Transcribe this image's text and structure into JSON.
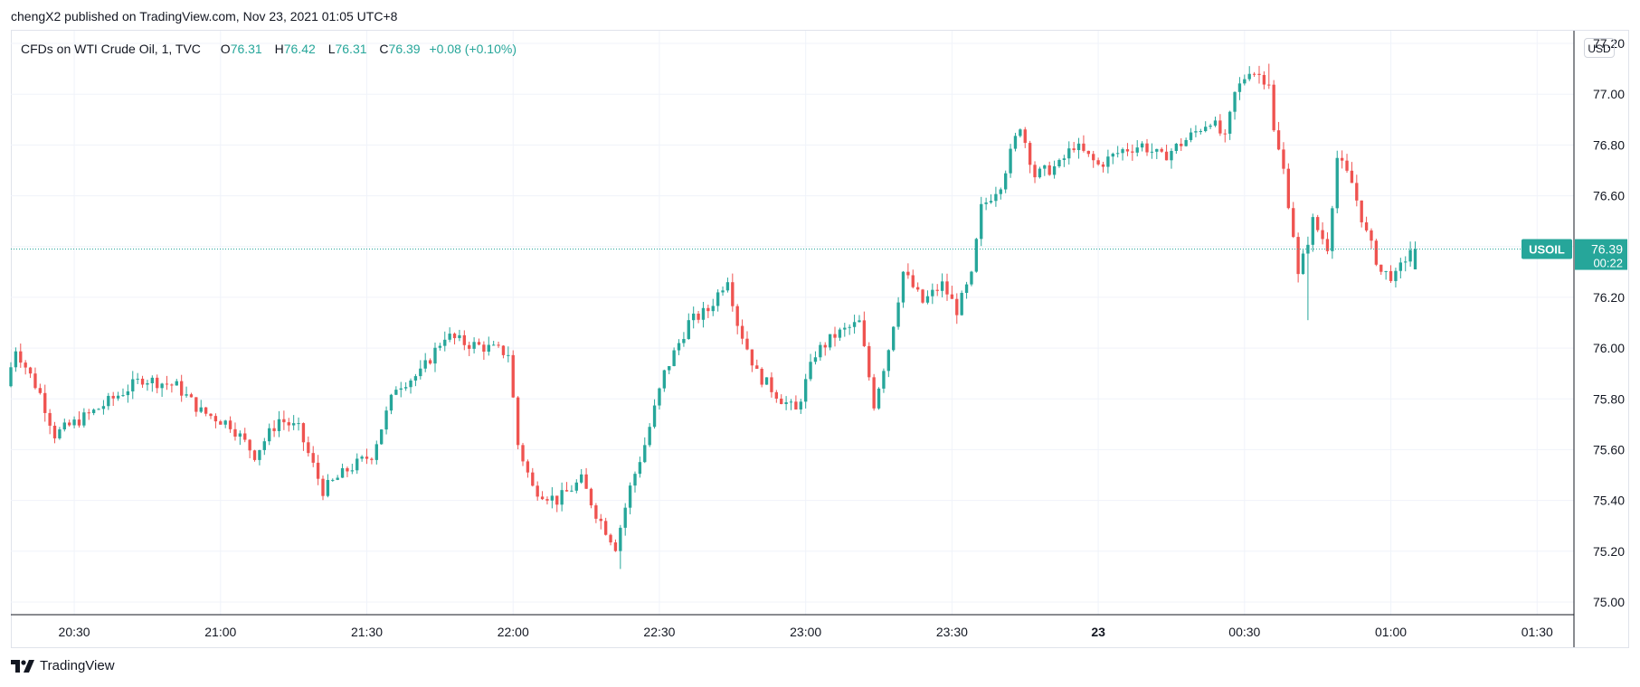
{
  "header": {
    "publisher_line": "chengX2 published on TradingView.com, Nov 23, 2021 01:05 UTC+8"
  },
  "legend": {
    "symbol": "CFDs on WTI Crude Oil, 1, TVC",
    "open_label": "O",
    "open": "76.31",
    "high_label": "H",
    "high": "76.42",
    "low_label": "L",
    "low": "76.31",
    "close_label": "C",
    "close": "76.39",
    "change": "+0.08 (+0.10%)"
  },
  "price_axis": {
    "currency": "USD",
    "ticks": [
      "77.20",
      "77.00",
      "76.80",
      "76.60",
      "76.40",
      "76.20",
      "76.00",
      "75.80",
      "75.60",
      "75.40",
      "75.20",
      "75.00"
    ]
  },
  "time_axis": {
    "ticks": [
      "20:30",
      "21:00",
      "21:30",
      "22:00",
      "22:30",
      "23:00",
      "23:30",
      "23",
      "00:30",
      "01:00",
      "01:30"
    ]
  },
  "last_price": {
    "symbol": "USOIL",
    "price": "76.39",
    "countdown": "00:22"
  },
  "footer": {
    "brand": "TradingView"
  },
  "colors": {
    "up": "#26a69a",
    "down": "#ef5350",
    "grid": "#f0f3fa",
    "axis": "#787b86"
  },
  "chart_data": {
    "type": "candlestick",
    "title": "CFDs on WTI Crude Oil, 1, TVC",
    "interval": "1 minute",
    "ylim": [
      74.95,
      77.25
    ],
    "x_range": [
      "20:17",
      "01:37"
    ],
    "grid": true,
    "anchors": [
      {
        "t": "20:17",
        "p": 75.85
      },
      {
        "t": "20:19",
        "p": 76.0
      },
      {
        "t": "20:24",
        "p": 75.82
      },
      {
        "t": "20:27",
        "p": 75.66
      },
      {
        "t": "20:35",
        "p": 75.75
      },
      {
        "t": "20:45",
        "p": 75.88
      },
      {
        "t": "20:52",
        "p": 75.85
      },
      {
        "t": "20:57",
        "p": 75.75
      },
      {
        "t": "21:03",
        "p": 75.7
      },
      {
        "t": "21:08",
        "p": 75.58
      },
      {
        "t": "21:13",
        "p": 75.72
      },
      {
        "t": "21:17",
        "p": 75.68
      },
      {
        "t": "21:22",
        "p": 75.44
      },
      {
        "t": "21:27",
        "p": 75.52
      },
      {
        "t": "21:32",
        "p": 75.58
      },
      {
        "t": "21:37",
        "p": 75.85
      },
      {
        "t": "21:42",
        "p": 75.9
      },
      {
        "t": "21:47",
        "p": 76.05
      },
      {
        "t": "21:51",
        "p": 76.02
      },
      {
        "t": "21:56",
        "p": 76.0
      },
      {
        "t": "22:00",
        "p": 75.98
      },
      {
        "t": "22:02",
        "p": 75.62
      },
      {
        "t": "22:05",
        "p": 75.45
      },
      {
        "t": "22:10",
        "p": 75.4
      },
      {
        "t": "22:15",
        "p": 75.48
      },
      {
        "t": "22:18",
        "p": 75.35
      },
      {
        "t": "22:22",
        "p": 75.22
      },
      {
        "t": "22:25",
        "p": 75.45
      },
      {
        "t": "22:28",
        "p": 75.62
      },
      {
        "t": "22:32",
        "p": 75.9
      },
      {
        "t": "22:37",
        "p": 76.1
      },
      {
        "t": "22:41",
        "p": 76.15
      },
      {
        "t": "22:45",
        "p": 76.28
      },
      {
        "t": "22:47",
        "p": 76.1
      },
      {
        "t": "22:51",
        "p": 75.9
      },
      {
        "t": "22:56",
        "p": 75.8
      },
      {
        "t": "22:59",
        "p": 75.75
      },
      {
        "t": "23:03",
        "p": 75.98
      },
      {
        "t": "23:07",
        "p": 76.05
      },
      {
        "t": "23:12",
        "p": 76.1
      },
      {
        "t": "23:15",
        "p": 75.78
      },
      {
        "t": "23:18",
        "p": 76.0
      },
      {
        "t": "23:21",
        "p": 76.3
      },
      {
        "t": "23:25",
        "p": 76.18
      },
      {
        "t": "23:29",
        "p": 76.25
      },
      {
        "t": "23:32",
        "p": 76.15
      },
      {
        "t": "23:35",
        "p": 76.28
      },
      {
        "t": "23:37",
        "p": 76.55
      },
      {
        "t": "23:41",
        "p": 76.65
      },
      {
        "t": "23:45",
        "p": 76.88
      },
      {
        "t": "23:48",
        "p": 76.68
      },
      {
        "t": "23:53",
        "p": 76.72
      },
      {
        "t": "23:56",
        "p": 76.8
      },
      {
        "t": "00:01",
        "p": 76.72
      },
      {
        "t": "00:06",
        "p": 76.78
      },
      {
        "t": "00:10",
        "p": 76.8
      },
      {
        "t": "00:14",
        "p": 76.75
      },
      {
        "t": "00:19",
        "p": 76.82
      },
      {
        "t": "00:24",
        "p": 76.9
      },
      {
        "t": "00:27",
        "p": 76.82
      },
      {
        "t": "00:29",
        "p": 77.0
      },
      {
        "t": "00:32",
        "p": 77.1
      },
      {
        "t": "00:36",
        "p": 77.05
      },
      {
        "t": "00:37",
        "p": 76.85
      },
      {
        "t": "00:39",
        "p": 76.7
      },
      {
        "t": "00:41",
        "p": 76.45
      },
      {
        "t": "00:42",
        "p": 76.28
      },
      {
        "t": "00:45",
        "p": 76.5
      },
      {
        "t": "00:48",
        "p": 76.4
      },
      {
        "t": "00:50",
        "p": 76.75
      },
      {
        "t": "00:53",
        "p": 76.65
      },
      {
        "t": "00:56",
        "p": 76.45
      },
      {
        "t": "00:59",
        "p": 76.3
      },
      {
        "t": "01:02",
        "p": 76.28
      },
      {
        "t": "01:05",
        "p": 76.39
      }
    ],
    "extremes": [
      {
        "t": "22:22",
        "low": 75.13
      },
      {
        "t": "00:35",
        "high": 77.12
      },
      {
        "t": "00:43",
        "low": 76.11
      }
    ],
    "last": {
      "t": "01:05",
      "open": 76.31,
      "high": 76.42,
      "low": 76.31,
      "close": 76.39
    }
  }
}
